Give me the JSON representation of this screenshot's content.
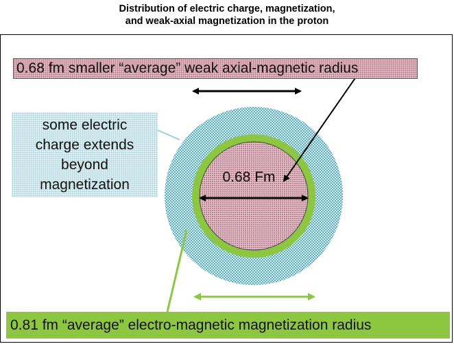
{
  "title_lines": [
    "Distribution of electric charge, magnetization,",
    "and weak-axial magnetization in the proton"
  ],
  "labels": {
    "weak_axial": "0.68 fm smaller  “average” weak axial-magnetic radius",
    "charge_lines": [
      "some electric",
      "charge extends",
      "beyond",
      "magnetization"
    ],
    "inner_radius": "0.68 Fm",
    "em_radius": "0.81 fm  “average” electro-magnetic magnetization  radius"
  },
  "colors": {
    "charge_region": "#3a9aa8",
    "magnetization_ring": "#8dc63f",
    "weak_axial_core": "#a0506a",
    "em_label_bg": "#8dc63f"
  }
}
